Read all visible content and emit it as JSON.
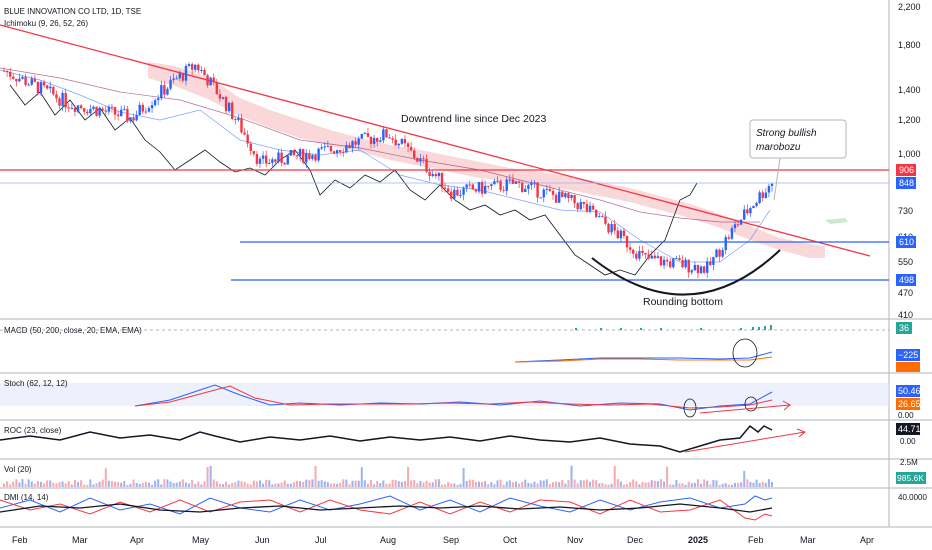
{
  "header": {
    "symbol": "BLUE INNOVATION CO LTD, 1D, TSE",
    "ichimoku": "Ichimoku (9, 26, 52, 26)"
  },
  "price_axis": {
    "ticks": [
      "2,200",
      "1,800",
      "1,400",
      "1,200",
      "1,000",
      "730",
      "610",
      "550",
      "470",
      "410"
    ],
    "tags": [
      {
        "label": "906",
        "color": "#f23645"
      },
      {
        "label": "848",
        "color": "#2962ff"
      },
      {
        "label": "610",
        "color": "#2962ff"
      },
      {
        "label": "498",
        "color": "#2962ff"
      }
    ]
  },
  "annotations": {
    "downtrend": "Downtrend line since Dec 2023",
    "marobozu": [
      "Strong bullish",
      "marobozu"
    ],
    "rounding": "Rounding bottom"
  },
  "panes": {
    "macd": {
      "label": "MACD (50, 200, close, 20, EMA, EMA)",
      "tags": [
        "36",
        "−225"
      ]
    },
    "stoch": {
      "label": "Stoch (62, 12, 12)",
      "tags": [
        "50.46",
        "26.65"
      ],
      "axis": "0.00"
    },
    "roc": {
      "label": "ROC (23, close)",
      "tags": [
        "44.71"
      ],
      "axis": "0.00"
    },
    "vol": {
      "label": "Vol (20)",
      "tags": [
        "985.6K"
      ],
      "axis": "2.5M"
    },
    "dmi": {
      "label": "DMI (14, 14)",
      "axis": "40.0000"
    }
  },
  "time_axis": [
    "Feb",
    "Mar",
    "Apr",
    "May",
    "Jun",
    "Jul",
    "Aug",
    "Sep",
    "Oct",
    "Nov",
    "Dec",
    "2025",
    "Feb",
    "Mar",
    "Apr"
  ],
  "colors": {
    "up": "#2962ff",
    "down": "#f23645",
    "cloud": "#f8c9cc",
    "trend": "#f23645",
    "level": "#2962ff"
  },
  "chart_data": {
    "type": "line",
    "title": "BLUE INNOVATION CO LTD, 1D, TSE",
    "x": [
      "2024-02",
      "2024-03",
      "2024-04",
      "2024-05",
      "2024-06",
      "2024-07",
      "2024-08",
      "2024-09",
      "2024-10",
      "2024-11",
      "2024-12",
      "2025-01",
      "2025-02"
    ],
    "series": [
      {
        "values": [
          1550,
          1300,
          1200,
          1600,
          940,
          1000,
          1100,
          800,
          840,
          750,
          560,
          530,
          848
        ]
      }
    ],
    "ylim": [
      410,
      2200
    ],
    "horizontal_levels": [
      906,
      848,
      610,
      498
    ]
  }
}
